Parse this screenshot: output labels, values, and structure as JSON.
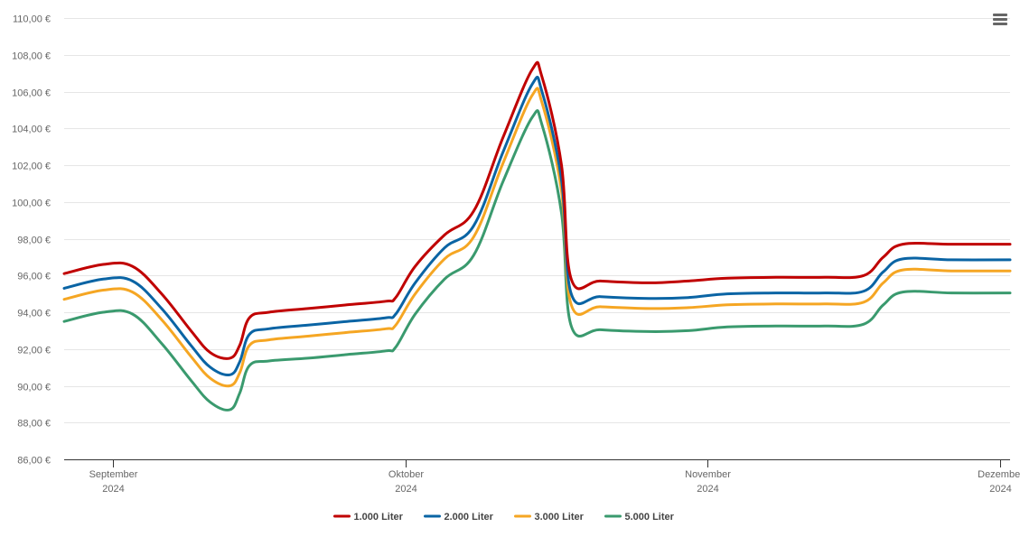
{
  "menu": {
    "icon": "hamburger-menu-icon"
  },
  "chart_data": {
    "type": "line",
    "y_axis": {
      "min": 86,
      "max": 110,
      "step": 2,
      "tick_labels": [
        "86,00 €",
        "88,00 €",
        "90,00 €",
        "92,00 €",
        "94,00 €",
        "96,00 €",
        "98,00 €",
        "100,00 €",
        "102,00 €",
        "104,00 €",
        "106,00 €",
        "108,00 €",
        "110,00 €"
      ]
    },
    "x_axis": {
      "min": "2024-08-27",
      "max": "2024-12-02",
      "ticks": [
        {
          "date": "2024-09-01",
          "label": "September",
          "year": "2024"
        },
        {
          "date": "2024-10-01",
          "label": "Oktober",
          "year": "2024"
        },
        {
          "date": "2024-11-01",
          "label": "November",
          "year": "2024"
        },
        {
          "date": "2024-12-01",
          "label": "Dezember",
          "year": "2024"
        }
      ]
    },
    "grid": true,
    "legend_position": "bottom-center",
    "series": [
      {
        "name": "1.000 Liter",
        "color": "#c00000",
        "points": [
          [
            "2024-08-27",
            96.1
          ],
          [
            "2024-08-31",
            96.6
          ],
          [
            "2024-09-03",
            96.5
          ],
          [
            "2024-09-06",
            95.0
          ],
          [
            "2024-09-09",
            93.0
          ],
          [
            "2024-09-11",
            91.8
          ],
          [
            "2024-09-13",
            91.5
          ],
          [
            "2024-09-14",
            92.2
          ],
          [
            "2024-09-15",
            93.7
          ],
          [
            "2024-09-17",
            94.0
          ],
          [
            "2024-09-21",
            94.2
          ],
          [
            "2024-09-25",
            94.4
          ],
          [
            "2024-09-29",
            94.6
          ],
          [
            "2024-09-30",
            94.8
          ],
          [
            "2024-10-02",
            96.5
          ],
          [
            "2024-10-05",
            98.2
          ],
          [
            "2024-10-08",
            99.5
          ],
          [
            "2024-10-11",
            103.5
          ],
          [
            "2024-10-14",
            107.2
          ],
          [
            "2024-10-15",
            106.8
          ],
          [
            "2024-10-17",
            102.0
          ],
          [
            "2024-10-18",
            95.8
          ],
          [
            "2024-10-21",
            95.7
          ],
          [
            "2024-10-26",
            95.6
          ],
          [
            "2024-10-30",
            95.7
          ],
          [
            "2024-11-03",
            95.85
          ],
          [
            "2024-11-08",
            95.9
          ],
          [
            "2024-11-13",
            95.9
          ],
          [
            "2024-11-17",
            96.0
          ],
          [
            "2024-11-19",
            97.0
          ],
          [
            "2024-11-21",
            97.7
          ],
          [
            "2024-11-26",
            97.7
          ],
          [
            "2024-12-02",
            97.7
          ]
        ]
      },
      {
        "name": "2.000 Liter",
        "color": "#0a64a4",
        "points": [
          [
            "2024-08-27",
            95.3
          ],
          [
            "2024-08-31",
            95.8
          ],
          [
            "2024-09-03",
            95.7
          ],
          [
            "2024-09-06",
            94.2
          ],
          [
            "2024-09-09",
            92.2
          ],
          [
            "2024-09-11",
            91.0
          ],
          [
            "2024-09-13",
            90.6
          ],
          [
            "2024-09-14",
            91.3
          ],
          [
            "2024-09-15",
            92.8
          ],
          [
            "2024-09-17",
            93.1
          ],
          [
            "2024-09-21",
            93.3
          ],
          [
            "2024-09-25",
            93.5
          ],
          [
            "2024-09-29",
            93.7
          ],
          [
            "2024-09-30",
            93.9
          ],
          [
            "2024-10-02",
            95.6
          ],
          [
            "2024-10-05",
            97.5
          ],
          [
            "2024-10-08",
            98.7
          ],
          [
            "2024-10-11",
            102.7
          ],
          [
            "2024-10-14",
            106.4
          ],
          [
            "2024-10-15",
            106.0
          ],
          [
            "2024-10-17",
            101.2
          ],
          [
            "2024-10-18",
            95.0
          ],
          [
            "2024-10-21",
            94.85
          ],
          [
            "2024-10-26",
            94.75
          ],
          [
            "2024-10-30",
            94.8
          ],
          [
            "2024-11-03",
            95.0
          ],
          [
            "2024-11-08",
            95.05
          ],
          [
            "2024-11-13",
            95.05
          ],
          [
            "2024-11-17",
            95.15
          ],
          [
            "2024-11-19",
            96.2
          ],
          [
            "2024-11-21",
            96.9
          ],
          [
            "2024-11-26",
            96.85
          ],
          [
            "2024-12-02",
            96.85
          ]
        ]
      },
      {
        "name": "3.000 Liter",
        "color": "#f5a623",
        "points": [
          [
            "2024-08-27",
            94.7
          ],
          [
            "2024-08-31",
            95.2
          ],
          [
            "2024-09-03",
            95.1
          ],
          [
            "2024-09-06",
            93.6
          ],
          [
            "2024-09-09",
            91.6
          ],
          [
            "2024-09-11",
            90.4
          ],
          [
            "2024-09-13",
            90.0
          ],
          [
            "2024-09-14",
            90.7
          ],
          [
            "2024-09-15",
            92.2
          ],
          [
            "2024-09-17",
            92.5
          ],
          [
            "2024-09-21",
            92.7
          ],
          [
            "2024-09-25",
            92.9
          ],
          [
            "2024-09-29",
            93.1
          ],
          [
            "2024-09-30",
            93.3
          ],
          [
            "2024-10-02",
            95.0
          ],
          [
            "2024-10-05",
            96.9
          ],
          [
            "2024-10-08",
            98.1
          ],
          [
            "2024-10-11",
            102.1
          ],
          [
            "2024-10-14",
            105.8
          ],
          [
            "2024-10-15",
            105.4
          ],
          [
            "2024-10-17",
            100.6
          ],
          [
            "2024-10-18",
            94.4
          ],
          [
            "2024-10-21",
            94.3
          ],
          [
            "2024-10-26",
            94.2
          ],
          [
            "2024-10-30",
            94.25
          ],
          [
            "2024-11-03",
            94.4
          ],
          [
            "2024-11-08",
            94.45
          ],
          [
            "2024-11-13",
            94.45
          ],
          [
            "2024-11-17",
            94.55
          ],
          [
            "2024-11-19",
            95.6
          ],
          [
            "2024-11-21",
            96.3
          ],
          [
            "2024-11-26",
            96.25
          ],
          [
            "2024-12-02",
            96.25
          ]
        ]
      },
      {
        "name": "5.000 Liter",
        "color": "#3a9a6e",
        "points": [
          [
            "2024-08-27",
            93.5
          ],
          [
            "2024-08-31",
            94.0
          ],
          [
            "2024-09-03",
            93.9
          ],
          [
            "2024-09-06",
            92.3
          ],
          [
            "2024-09-09",
            90.3
          ],
          [
            "2024-09-11",
            89.1
          ],
          [
            "2024-09-13",
            88.7
          ],
          [
            "2024-09-14",
            89.6
          ],
          [
            "2024-09-15",
            91.1
          ],
          [
            "2024-09-17",
            91.35
          ],
          [
            "2024-09-21",
            91.5
          ],
          [
            "2024-09-25",
            91.7
          ],
          [
            "2024-09-29",
            91.9
          ],
          [
            "2024-09-30",
            92.1
          ],
          [
            "2024-10-02",
            93.9
          ],
          [
            "2024-10-05",
            95.8
          ],
          [
            "2024-10-08",
            97.1
          ],
          [
            "2024-10-11",
            101.1
          ],
          [
            "2024-10-14",
            104.6
          ],
          [
            "2024-10-15",
            104.2
          ],
          [
            "2024-10-17",
            99.4
          ],
          [
            "2024-10-18",
            93.25
          ],
          [
            "2024-10-21",
            93.05
          ],
          [
            "2024-10-26",
            92.95
          ],
          [
            "2024-10-30",
            93.0
          ],
          [
            "2024-11-03",
            93.2
          ],
          [
            "2024-11-08",
            93.25
          ],
          [
            "2024-11-13",
            93.25
          ],
          [
            "2024-11-17",
            93.35
          ],
          [
            "2024-11-19",
            94.4
          ],
          [
            "2024-11-21",
            95.1
          ],
          [
            "2024-11-26",
            95.05
          ],
          [
            "2024-12-02",
            95.05
          ]
        ]
      }
    ]
  }
}
